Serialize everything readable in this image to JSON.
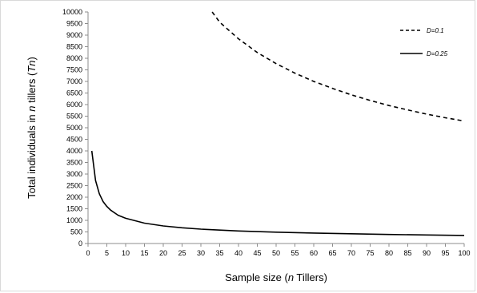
{
  "chart_data": {
    "type": "line",
    "xlabel": "Sample size (n Tillers)",
    "xlabel_parts": {
      "pre": "Sample size (",
      "ital": "n",
      "post": " Tillers)"
    },
    "ylabel": "Total individuals in n tillers (Tn)",
    "ylabel_parts": {
      "pre": "Total individuals in ",
      "ital1": "n",
      "mid": " tillers (",
      "ital2": "Tn",
      "post": ")"
    },
    "xlim": [
      0,
      100
    ],
    "ylim": [
      0,
      10000
    ],
    "x_ticks": [
      0,
      5,
      10,
      15,
      20,
      25,
      30,
      35,
      40,
      45,
      50,
      55,
      60,
      65,
      70,
      75,
      80,
      85,
      90,
      95,
      100
    ],
    "y_ticks": [
      0,
      500,
      1000,
      1500,
      2000,
      2500,
      3000,
      3500,
      4000,
      4500,
      5000,
      5500,
      6000,
      6500,
      7000,
      7500,
      8000,
      8500,
      9000,
      9500,
      10000
    ],
    "grid": false,
    "legend_position": "top-right",
    "series": [
      {
        "name": "D=0.1",
        "style": "dashed",
        "color": "#000000",
        "x": [
          33,
          35,
          40,
          45,
          50,
          55,
          60,
          65,
          70,
          75,
          80,
          85,
          90,
          95,
          100
        ],
        "y": [
          10000,
          9560,
          8840,
          8250,
          7770,
          7360,
          7000,
          6700,
          6420,
          6180,
          5960,
          5770,
          5590,
          5430,
          5290
        ]
      },
      {
        "name": "D=0.25",
        "style": "solid",
        "color": "#000000",
        "x": [
          1,
          2,
          3,
          4,
          5,
          6,
          8,
          10,
          15,
          20,
          25,
          30,
          40,
          50,
          60,
          70,
          80,
          90,
          100
        ],
        "y": [
          4000,
          2720,
          2150,
          1810,
          1600,
          1440,
          1220,
          1090,
          880,
          760,
          680,
          620,
          540,
          490,
          450,
          420,
          390,
          370,
          350
        ]
      }
    ]
  }
}
